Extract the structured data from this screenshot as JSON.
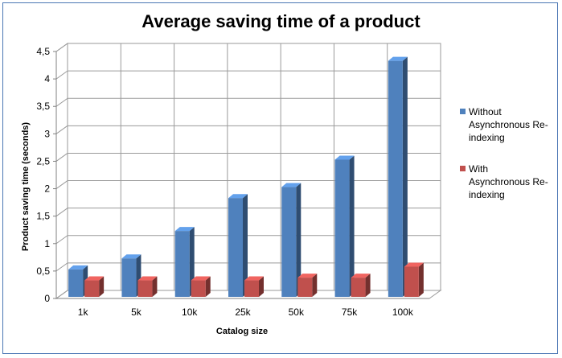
{
  "chart_data": {
    "type": "bar",
    "title": "Average saving time of a product",
    "xlabel": "Catalog size",
    "ylabel": "Product saving time (seconds)",
    "categories": [
      "1k",
      "5k",
      "10k",
      "25k",
      "50k",
      "75k",
      "100k"
    ],
    "y_ticks": [
      "0",
      "0,5",
      "1",
      "1,5",
      "2",
      "2,5",
      "3",
      "3,5",
      "4",
      "4,5"
    ],
    "ylim": [
      0,
      4.5
    ],
    "grid": true,
    "legend_position": "right",
    "series": [
      {
        "name": "Without Asynchronous Re-indexing",
        "legend_lines": [
          "Without",
          "Asynchronous Re-",
          "indexing"
        ],
        "color": "#4f81bd",
        "values": [
          0.5,
          0.7,
          1.2,
          1.8,
          2.0,
          2.5,
          4.3
        ]
      },
      {
        "name": "With Asynchronous Re-indexing",
        "legend_lines": [
          "With",
          "Asynchronous Re-",
          "indexing"
        ],
        "color": "#c0504d",
        "values": [
          0.3,
          0.3,
          0.3,
          0.3,
          0.35,
          0.35,
          0.55
        ]
      }
    ]
  }
}
